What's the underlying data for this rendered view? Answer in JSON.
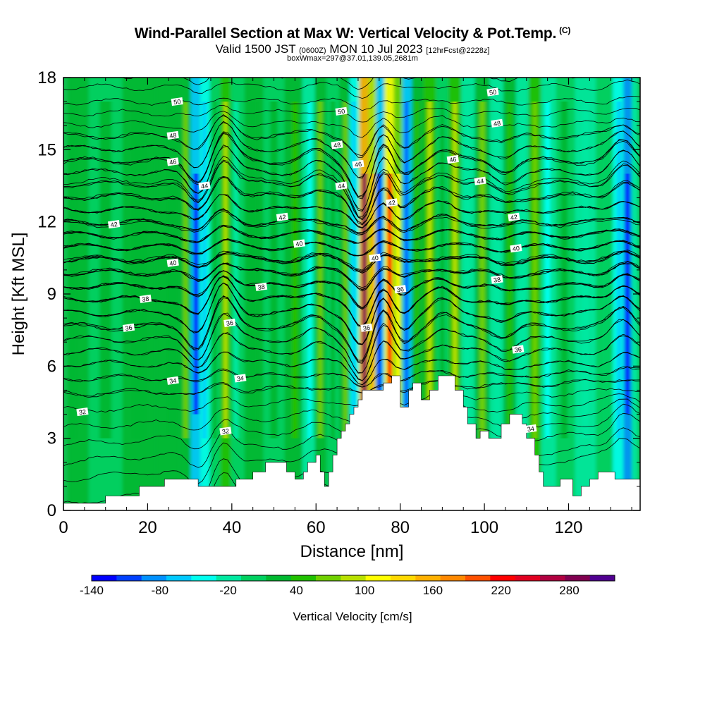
{
  "header": {
    "title": "Wind-Parallel Section at Max W: Vertical Velocity & Pot.Temp.",
    "copyright": "(C)",
    "subtitle_main_a": "Valid 1500 JST",
    "subtitle_small_a": "(0600Z)",
    "subtitle_main_b": "MON 10 Jul 2023",
    "subtitle_small_b": "[12hrFcst@2228z]",
    "subtitle3": "boxWmax=297@37.01,139.05,2681m"
  },
  "chart_data": {
    "type": "heatmap",
    "title": "Wind-Parallel Section at Max W: Vertical Velocity & Pot.Temp.",
    "xlabel": "Distance [nm]",
    "ylabel": "Height [Kft MSL]",
    "xlim": [
      0,
      137
    ],
    "ylim": [
      0,
      18
    ],
    "x_ticks": [
      0,
      20,
      40,
      60,
      80,
      100,
      120
    ],
    "y_ticks": [
      0,
      3,
      6,
      9,
      12,
      15,
      18
    ],
    "grid": false,
    "colorbar": {
      "label": "Vertical Velocity [cm/s]",
      "tick_labels": [
        "-140",
        "-80",
        "-20",
        "40",
        "100",
        "160",
        "220",
        "280"
      ],
      "tick_values": [
        -140,
        -80,
        -20,
        40,
        100,
        160,
        220,
        280
      ],
      "min": -140,
      "max": 320,
      "colors": [
        "#0000ff",
        "#0040ff",
        "#0090ff",
        "#00c8ff",
        "#00ffee",
        "#00e8a0",
        "#00d060",
        "#00b830",
        "#20c000",
        "#70d000",
        "#b8e000",
        "#ffff00",
        "#ffd800",
        "#ffb000",
        "#ff8800",
        "#ff5000",
        "#ff0000",
        "#e00020",
        "#b00040",
        "#800050",
        "#500090"
      ]
    },
    "columns": [
      {
        "x": 2,
        "w": 25
      },
      {
        "x": 10,
        "w": 20
      },
      {
        "x": 18,
        "w": 25
      },
      {
        "x": 26,
        "w": 30
      },
      {
        "x": 29,
        "w": 60
      },
      {
        "x": 31.5,
        "w": -120
      },
      {
        "x": 33.5,
        "w": -60
      },
      {
        "x": 36,
        "w": 20
      },
      {
        "x": 38.5,
        "w": 80
      },
      {
        "x": 41,
        "w": -10
      },
      {
        "x": 45,
        "w": 30
      },
      {
        "x": 50,
        "w": 20
      },
      {
        "x": 55,
        "w": 40
      },
      {
        "x": 58.5,
        "w": -50
      },
      {
        "x": 61,
        "w": 60
      },
      {
        "x": 64,
        "w": 20
      },
      {
        "x": 67,
        "w": 60
      },
      {
        "x": 69,
        "w": -60
      },
      {
        "x": 71.5,
        "w": 297
      },
      {
        "x": 73.5,
        "w": 160
      },
      {
        "x": 75,
        "w": -120
      },
      {
        "x": 77.5,
        "w": 220
      },
      {
        "x": 79.5,
        "w": 120
      },
      {
        "x": 81.5,
        "w": -100
      },
      {
        "x": 84,
        "w": 40
      },
      {
        "x": 87,
        "w": 80
      },
      {
        "x": 90,
        "w": 20
      },
      {
        "x": 93,
        "w": 90
      },
      {
        "x": 96,
        "w": -20
      },
      {
        "x": 99.5,
        "w": 60
      },
      {
        "x": 103,
        "w": -20
      },
      {
        "x": 106,
        "w": 50
      },
      {
        "x": 109,
        "w": -30
      },
      {
        "x": 112,
        "w": 70
      },
      {
        "x": 115,
        "w": -40
      },
      {
        "x": 119,
        "w": 20
      },
      {
        "x": 124,
        "w": -30
      },
      {
        "x": 129,
        "w": 10
      },
      {
        "x": 132,
        "w": -60
      },
      {
        "x": 134,
        "w": -140
      },
      {
        "x": 136,
        "w": -30
      }
    ],
    "terrain": [
      [
        0,
        0.3
      ],
      [
        10,
        0.3
      ],
      [
        10,
        0.6
      ],
      [
        18,
        0.6
      ],
      [
        18,
        1.0
      ],
      [
        24,
        1.0
      ],
      [
        24,
        1.3
      ],
      [
        32,
        1.3
      ],
      [
        32,
        1.0
      ],
      [
        41,
        1.0
      ],
      [
        41,
        1.3
      ],
      [
        45,
        1.3
      ],
      [
        45,
        1.6
      ],
      [
        48,
        1.6
      ],
      [
        48,
        2.0
      ],
      [
        53,
        2.0
      ],
      [
        53,
        1.6
      ],
      [
        55,
        1.6
      ],
      [
        55,
        1.3
      ],
      [
        57,
        1.3
      ],
      [
        57,
        1.6
      ],
      [
        58,
        1.6
      ],
      [
        58,
        2.0
      ],
      [
        60,
        2.0
      ],
      [
        60,
        2.3
      ],
      [
        61,
        2.3
      ],
      [
        61,
        1.6
      ],
      [
        62,
        1.6
      ],
      [
        62,
        1.0
      ],
      [
        63,
        1.0
      ],
      [
        63,
        1.6
      ],
      [
        64,
        1.6
      ],
      [
        64,
        2.3
      ],
      [
        65,
        2.3
      ],
      [
        65,
        3.0
      ],
      [
        66,
        3.0
      ],
      [
        66,
        3.3
      ],
      [
        67,
        3.3
      ],
      [
        67,
        3.6
      ],
      [
        68,
        3.6
      ],
      [
        68,
        4.0
      ],
      [
        69,
        4.0
      ],
      [
        69,
        4.3
      ],
      [
        70,
        4.3
      ],
      [
        70,
        4.6
      ],
      [
        71,
        4.6
      ],
      [
        71,
        5.0
      ],
      [
        76,
        5.0
      ],
      [
        76,
        5.3
      ],
      [
        78,
        5.3
      ],
      [
        78,
        5.6
      ],
      [
        80,
        5.6
      ],
      [
        80,
        4.3
      ],
      [
        82,
        4.3
      ],
      [
        82,
        5.0
      ],
      [
        83,
        5.0
      ],
      [
        83,
        5.3
      ],
      [
        85,
        5.3
      ],
      [
        85,
        4.6
      ],
      [
        87,
        4.6
      ],
      [
        87,
        5.0
      ],
      [
        89,
        5.0
      ],
      [
        89,
        5.6
      ],
      [
        93,
        5.6
      ],
      [
        93,
        5.0
      ],
      [
        95,
        5.0
      ],
      [
        95,
        4.3
      ],
      [
        96,
        4.3
      ],
      [
        96,
        3.6
      ],
      [
        98,
        3.6
      ],
      [
        98,
        3.0
      ],
      [
        99,
        3.0
      ],
      [
        99,
        3.3
      ],
      [
        101,
        3.3
      ],
      [
        101,
        3.0
      ],
      [
        104,
        3.0
      ],
      [
        104,
        3.6
      ],
      [
        106,
        3.6
      ],
      [
        106,
        4.0
      ],
      [
        109,
        4.0
      ],
      [
        109,
        3.6
      ],
      [
        110,
        3.6
      ],
      [
        110,
        3.0
      ],
      [
        112,
        3.0
      ],
      [
        112,
        2.3
      ],
      [
        113,
        2.3
      ],
      [
        113,
        1.6
      ],
      [
        114,
        1.6
      ],
      [
        114,
        1.0
      ],
      [
        118,
        1.0
      ],
      [
        118,
        1.3
      ],
      [
        121,
        1.3
      ],
      [
        121,
        0.6
      ],
      [
        123,
        0.6
      ],
      [
        123,
        1.0
      ],
      [
        125,
        1.0
      ],
      [
        125,
        1.3
      ],
      [
        127,
        1.3
      ],
      [
        127,
        1.6
      ],
      [
        131,
        1.6
      ],
      [
        131,
        1.3
      ],
      [
        137,
        1.3
      ]
    ],
    "contours": [
      {
        "label": "32",
        "base": 2.2,
        "label_x": 4.5
      },
      {
        "label": "34",
        "base": 5.1,
        "label_x": 26
      },
      {
        "label": "36",
        "base": 7.6,
        "label_x": 15
      },
      {
        "label": "38",
        "base": 8.8,
        "label_x": 19
      },
      {
        "label": "40",
        "base": 10.5,
        "label_x": 26
      },
      {
        "label": "42",
        "base": 11.9,
        "label_x": 12
      },
      {
        "label": "44",
        "base": 13.7,
        "label_x": 33
      },
      {
        "label": "46",
        "base": 14.5,
        "label_x": 26
      },
      {
        "label": "48",
        "base": 15.6,
        "label_x": 26
      },
      {
        "label": "50",
        "base": 17.0,
        "label_x": 27
      }
    ],
    "contour_labels": [
      {
        "text": "50",
        "x": 27,
        "y": 17.0
      },
      {
        "text": "48",
        "x": 26,
        "y": 15.6
      },
      {
        "text": "46",
        "x": 26,
        "y": 14.5
      },
      {
        "text": "44",
        "x": 33.5,
        "y": 13.5
      },
      {
        "text": "42",
        "x": 12,
        "y": 11.9
      },
      {
        "text": "40",
        "x": 26,
        "y": 10.3
      },
      {
        "text": "38",
        "x": 19.5,
        "y": 8.8
      },
      {
        "text": "36",
        "x": 15.5,
        "y": 7.6
      },
      {
        "text": "34",
        "x": 26,
        "y": 5.4
      },
      {
        "text": "32",
        "x": 4.5,
        "y": 4.1
      },
      {
        "text": "38",
        "x": 47,
        "y": 9.3
      },
      {
        "text": "40",
        "x": 56,
        "y": 11.1
      },
      {
        "text": "42",
        "x": 52,
        "y": 12.2
      },
      {
        "text": "36",
        "x": 39.5,
        "y": 7.8
      },
      {
        "text": "34",
        "x": 42,
        "y": 5.5
      },
      {
        "text": "32",
        "x": 38.5,
        "y": 3.3
      },
      {
        "text": "50",
        "x": 66,
        "y": 16.6
      },
      {
        "text": "48",
        "x": 65,
        "y": 15.2
      },
      {
        "text": "46",
        "x": 70,
        "y": 14.4
      },
      {
        "text": "44",
        "x": 66,
        "y": 13.5
      },
      {
        "text": "40",
        "x": 74,
        "y": 10.5
      },
      {
        "text": "36",
        "x": 72,
        "y": 7.6
      },
      {
        "text": "42",
        "x": 78,
        "y": 12.8
      },
      {
        "text": "36",
        "x": 80,
        "y": 9.2
      },
      {
        "text": "50",
        "x": 102,
        "y": 17.4
      },
      {
        "text": "48",
        "x": 103,
        "y": 16.1
      },
      {
        "text": "46",
        "x": 92.5,
        "y": 14.6
      },
      {
        "text": "44",
        "x": 99,
        "y": 13.7
      },
      {
        "text": "42",
        "x": 107,
        "y": 12.2
      },
      {
        "text": "40",
        "x": 107.5,
        "y": 10.9
      },
      {
        "text": "38",
        "x": 103,
        "y": 9.6
      },
      {
        "text": "36",
        "x": 108,
        "y": 6.7
      },
      {
        "text": "34",
        "x": 111,
        "y": 3.4
      }
    ]
  }
}
